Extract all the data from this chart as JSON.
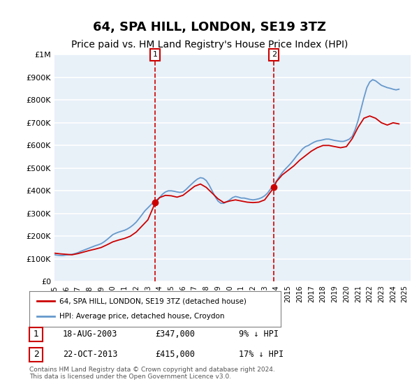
{
  "title": "64, SPA HILL, LONDON, SE19 3TZ",
  "subtitle": "Price paid vs. HM Land Registry's House Price Index (HPI)",
  "title_fontsize": 13,
  "subtitle_fontsize": 10,
  "background_color": "#ffffff",
  "plot_bg_color": "#e8f0f8",
  "grid_color": "#ffffff",
  "ylim": [
    0,
    1000000
  ],
  "xlim_start": 1995.0,
  "xlim_end": 2025.5,
  "ytick_labels": [
    "£0",
    "£100K",
    "£200K",
    "£300K",
    "£400K",
    "£500K",
    "£600K",
    "£700K",
    "£800K",
    "£900K",
    "£1M"
  ],
  "ytick_values": [
    0,
    100000,
    200000,
    300000,
    400000,
    500000,
    600000,
    700000,
    800000,
    900000,
    1000000
  ],
  "purchase1_date": 2003.625,
  "purchase1_price": 347000,
  "purchase1_label": "18-AUG-2003",
  "purchase1_hpi_text": "9% ↓ HPI",
  "purchase2_date": 2013.8,
  "purchase2_price": 415000,
  "purchase2_label": "22-OCT-2013",
  "purchase2_hpi_text": "17% ↓ HPI",
  "red_line_color": "#cc0000",
  "blue_line_color": "#6699cc",
  "marker_color": "#cc0000",
  "legend_label_red": "64, SPA HILL, LONDON, SE19 3TZ (detached house)",
  "legend_label_blue": "HPI: Average price, detached house, Croydon",
  "footnote": "Contains HM Land Registry data © Crown copyright and database right 2024.\nThis data is licensed under the Open Government Licence v3.0.",
  "hpi_data_x": [
    1995.0,
    1995.25,
    1995.5,
    1995.75,
    1996.0,
    1996.25,
    1996.5,
    1996.75,
    1997.0,
    1997.25,
    1997.5,
    1997.75,
    1998.0,
    1998.25,
    1998.5,
    1998.75,
    1999.0,
    1999.25,
    1999.5,
    1999.75,
    2000.0,
    2000.25,
    2000.5,
    2000.75,
    2001.0,
    2001.25,
    2001.5,
    2001.75,
    2002.0,
    2002.25,
    2002.5,
    2002.75,
    2003.0,
    2003.25,
    2003.5,
    2003.75,
    2004.0,
    2004.25,
    2004.5,
    2004.75,
    2005.0,
    2005.25,
    2005.5,
    2005.75,
    2006.0,
    2006.25,
    2006.5,
    2006.75,
    2007.0,
    2007.25,
    2007.5,
    2007.75,
    2008.0,
    2008.25,
    2008.5,
    2008.75,
    2009.0,
    2009.25,
    2009.5,
    2009.75,
    2010.0,
    2010.25,
    2010.5,
    2010.75,
    2011.0,
    2011.25,
    2011.5,
    2011.75,
    2012.0,
    2012.25,
    2012.5,
    2012.75,
    2013.0,
    2013.25,
    2013.5,
    2013.75,
    2014.0,
    2014.25,
    2014.5,
    2014.75,
    2015.0,
    2015.25,
    2015.5,
    2015.75,
    2016.0,
    2016.25,
    2016.5,
    2016.75,
    2017.0,
    2017.25,
    2017.5,
    2017.75,
    2018.0,
    2018.25,
    2018.5,
    2018.75,
    2019.0,
    2019.25,
    2019.5,
    2019.75,
    2020.0,
    2020.25,
    2020.5,
    2020.75,
    2021.0,
    2021.25,
    2021.5,
    2021.75,
    2022.0,
    2022.25,
    2022.5,
    2022.75,
    2023.0,
    2023.25,
    2023.5,
    2023.75,
    2024.0,
    2024.25,
    2024.5
  ],
  "hpi_data_y": [
    118000,
    116000,
    115000,
    115000,
    117000,
    118000,
    120000,
    123000,
    127000,
    133000,
    138000,
    143000,
    148000,
    153000,
    158000,
    162000,
    167000,
    175000,
    185000,
    196000,
    207000,
    213000,
    218000,
    222000,
    226000,
    232000,
    240000,
    250000,
    262000,
    278000,
    295000,
    312000,
    325000,
    338000,
    350000,
    360000,
    370000,
    385000,
    395000,
    400000,
    400000,
    398000,
    395000,
    393000,
    395000,
    405000,
    418000,
    430000,
    442000,
    452000,
    458000,
    455000,
    445000,
    425000,
    400000,
    375000,
    355000,
    345000,
    345000,
    352000,
    360000,
    370000,
    375000,
    372000,
    368000,
    368000,
    365000,
    362000,
    360000,
    362000,
    365000,
    370000,
    378000,
    390000,
    408000,
    425000,
    442000,
    462000,
    480000,
    495000,
    508000,
    522000,
    538000,
    555000,
    570000,
    585000,
    595000,
    600000,
    608000,
    615000,
    620000,
    622000,
    625000,
    628000,
    628000,
    625000,
    622000,
    620000,
    618000,
    618000,
    622000,
    628000,
    640000,
    670000,
    710000,
    760000,
    810000,
    855000,
    880000,
    890000,
    885000,
    875000,
    865000,
    860000,
    855000,
    852000,
    848000,
    845000,
    848000
  ],
  "price_data_x": [
    1995.0,
    1995.5,
    1996.0,
    1996.5,
    1997.0,
    1997.5,
    1998.0,
    1998.5,
    1999.0,
    1999.5,
    2000.0,
    2000.5,
    2001.0,
    2001.5,
    2002.0,
    2002.5,
    2003.0,
    2003.625,
    2004.0,
    2004.5,
    2005.0,
    2005.5,
    2006.0,
    2006.5,
    2007.0,
    2007.5,
    2008.0,
    2008.5,
    2009.0,
    2009.5,
    2010.0,
    2010.5,
    2011.0,
    2011.5,
    2012.0,
    2012.5,
    2013.0,
    2013.8,
    2014.0,
    2014.5,
    2015.0,
    2015.5,
    2016.0,
    2016.5,
    2017.0,
    2017.5,
    2018.0,
    2018.5,
    2019.0,
    2019.5,
    2020.0,
    2020.5,
    2021.0,
    2021.5,
    2022.0,
    2022.5,
    2023.0,
    2023.5,
    2024.0,
    2024.5
  ],
  "price_data_y": [
    125000,
    122000,
    120000,
    118000,
    123000,
    130000,
    137000,
    143000,
    150000,
    162000,
    175000,
    183000,
    190000,
    200000,
    218000,
    245000,
    272000,
    347000,
    370000,
    380000,
    378000,
    372000,
    380000,
    400000,
    420000,
    430000,
    415000,
    390000,
    365000,
    348000,
    355000,
    360000,
    355000,
    350000,
    348000,
    350000,
    360000,
    415000,
    440000,
    470000,
    490000,
    510000,
    535000,
    555000,
    575000,
    590000,
    600000,
    600000,
    595000,
    590000,
    595000,
    630000,
    680000,
    720000,
    730000,
    720000,
    700000,
    690000,
    700000,
    695000
  ]
}
